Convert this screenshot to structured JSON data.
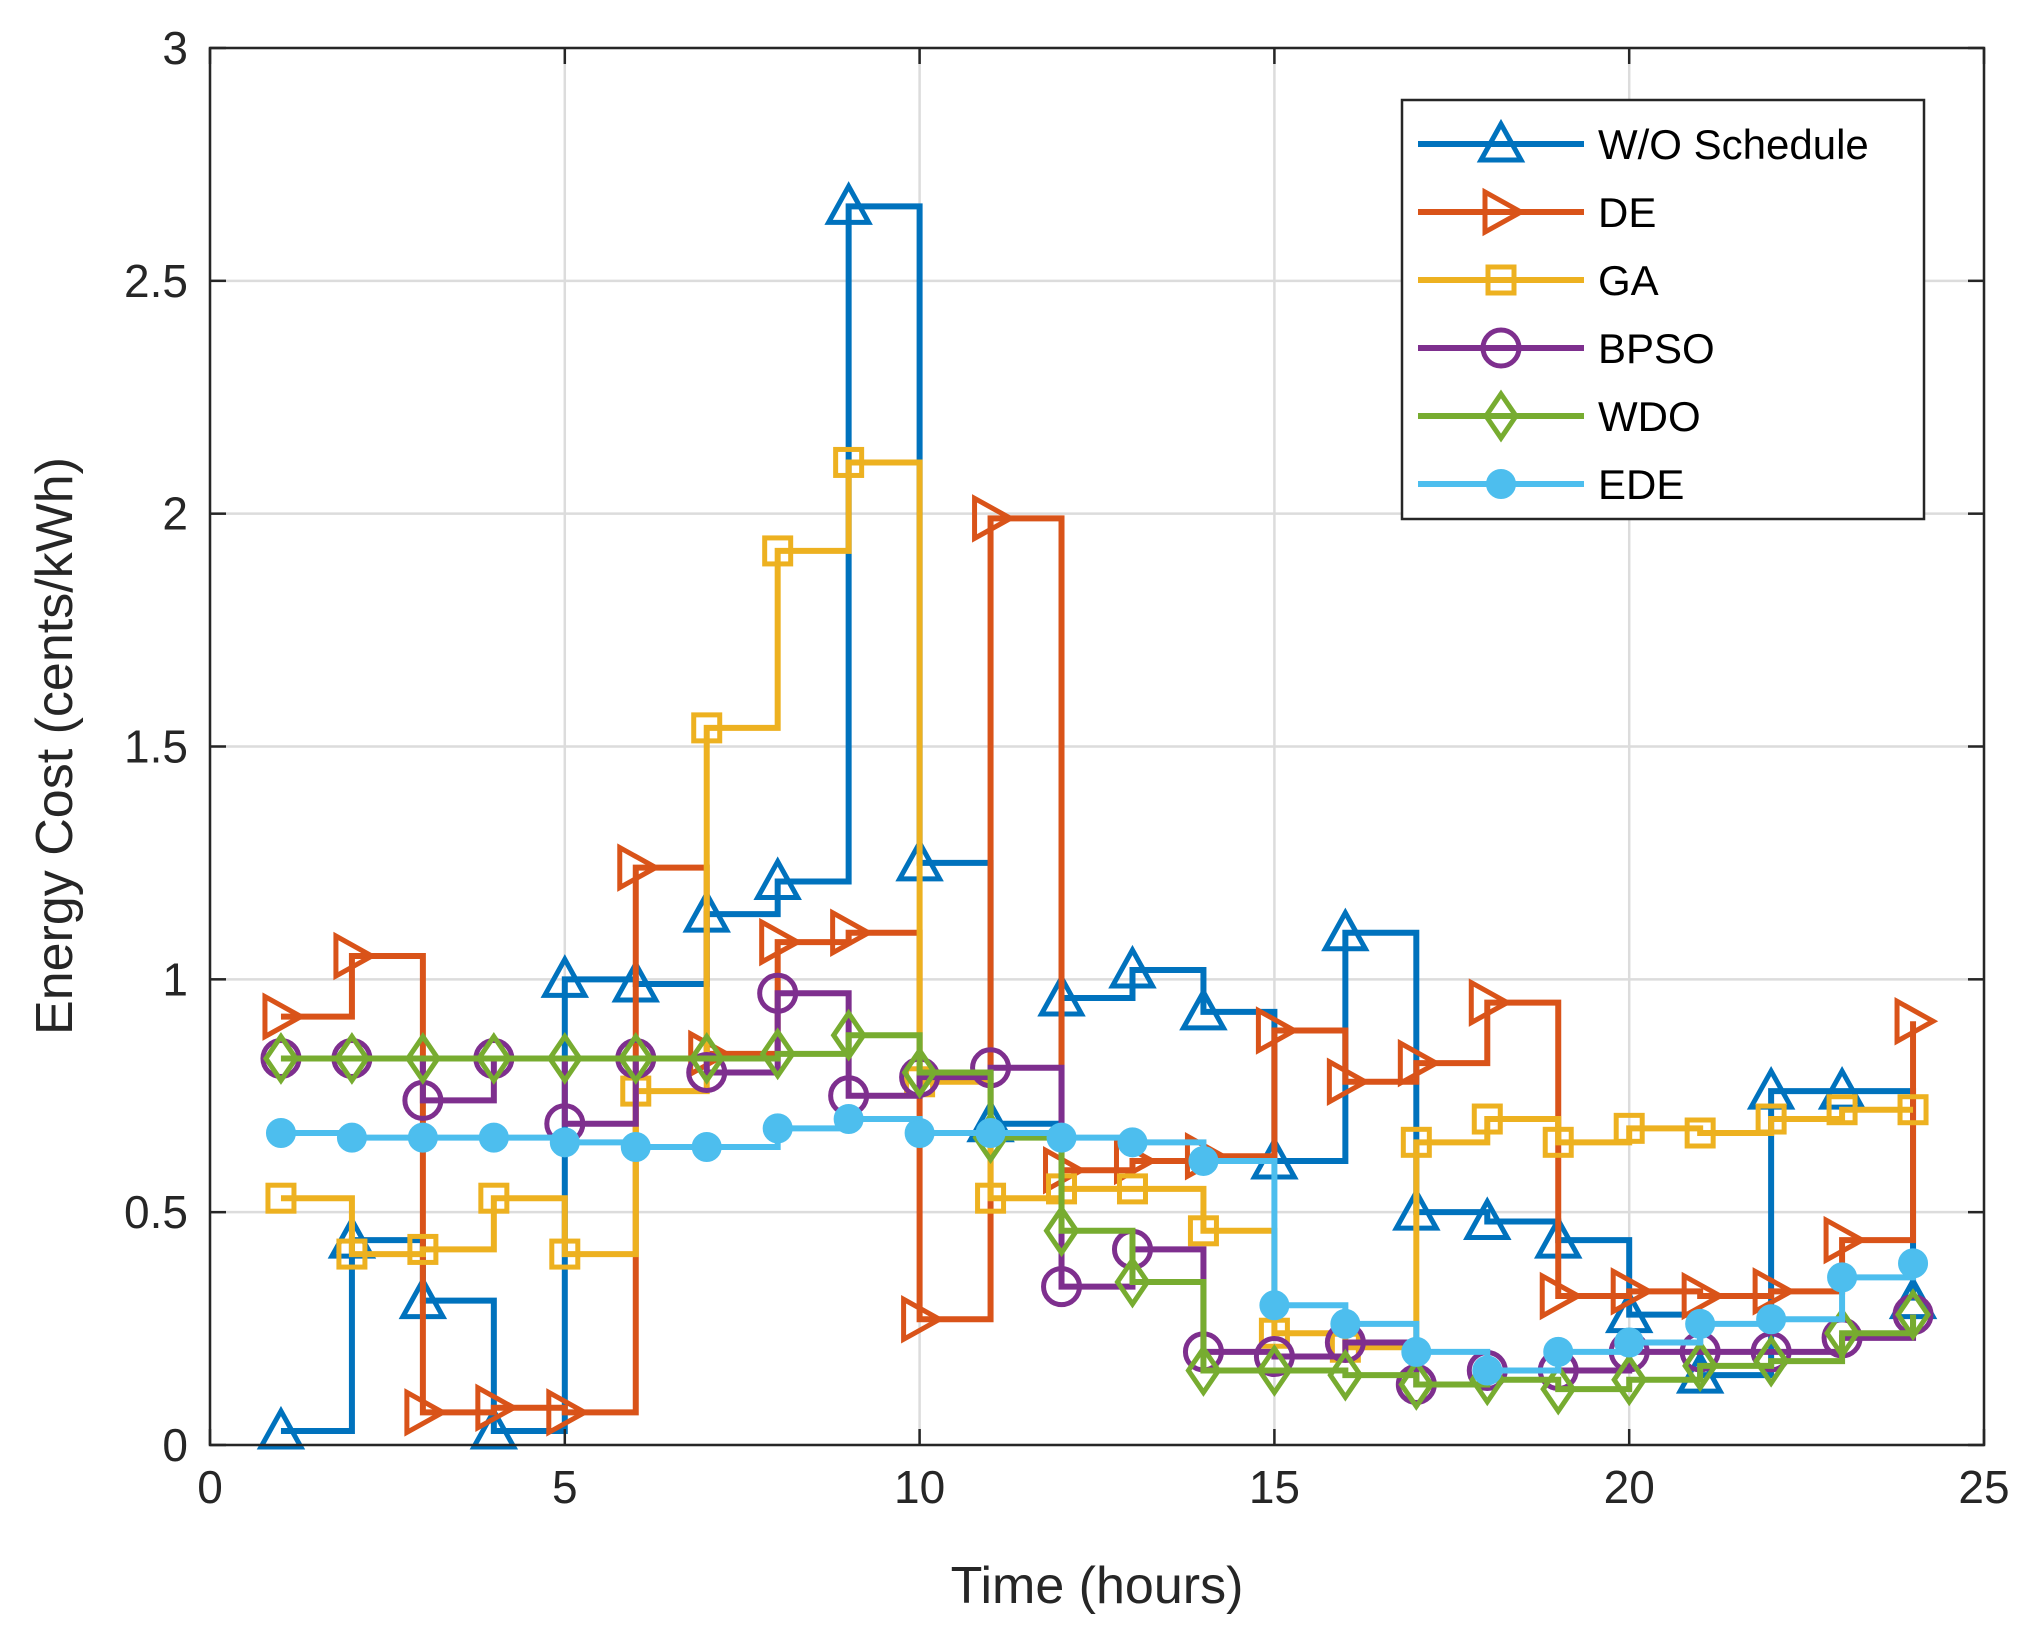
{
  "chart_data": {
    "type": "line",
    "style": "stairs",
    "title": "",
    "xlabel": "Time (hours)",
    "ylabel": "Energy Cost (cents/kWh)",
    "xlim": [
      0,
      25
    ],
    "ylim": [
      0,
      3
    ],
    "x_ticks": [
      "0",
      "5",
      "10",
      "15",
      "20",
      "25"
    ],
    "y_ticks": [
      "0",
      "0.5",
      "1",
      "1.5",
      "2",
      "2.5",
      "3"
    ],
    "grid": true,
    "legend_position": "top-right",
    "x": [
      1,
      2,
      3,
      4,
      5,
      6,
      7,
      8,
      9,
      10,
      11,
      12,
      13,
      14,
      15,
      16,
      17,
      18,
      19,
      20,
      21,
      22,
      23,
      24
    ],
    "series": [
      {
        "name": "W/O Schedule",
        "color": "#0072BD",
        "marker": "triangle-up",
        "values": [
          0.03,
          0.44,
          0.31,
          0.03,
          1.0,
          0.99,
          1.14,
          1.21,
          2.66,
          1.25,
          0.69,
          0.96,
          1.02,
          0.93,
          0.61,
          1.1,
          0.5,
          0.48,
          0.44,
          0.28,
          0.15,
          0.76,
          0.76,
          0.31
        ]
      },
      {
        "name": "DE",
        "color": "#D95319",
        "marker": "triangle-right",
        "values": [
          0.92,
          1.05,
          0.07,
          0.08,
          0.07,
          1.24,
          0.84,
          1.08,
          1.1,
          0.27,
          1.99,
          0.59,
          0.61,
          0.62,
          0.89,
          0.78,
          0.82,
          0.95,
          0.32,
          0.33,
          0.32,
          0.33,
          0.44,
          0.91
        ]
      },
      {
        "name": "GA",
        "color": "#EDB120",
        "marker": "square",
        "values": [
          0.53,
          0.41,
          0.42,
          0.53,
          0.41,
          0.76,
          1.54,
          1.92,
          2.11,
          0.78,
          0.53,
          0.55,
          0.55,
          0.46,
          0.24,
          0.21,
          0.65,
          0.7,
          0.65,
          0.68,
          0.67,
          0.7,
          0.72,
          0.72
        ]
      },
      {
        "name": "BPSO",
        "color": "#7E2F8E",
        "marker": "circle",
        "values": [
          0.83,
          0.83,
          0.74,
          0.83,
          0.69,
          0.83,
          0.8,
          0.97,
          0.75,
          0.79,
          0.81,
          0.34,
          0.42,
          0.2,
          0.19,
          0.22,
          0.13,
          0.16,
          0.16,
          0.2,
          0.2,
          0.2,
          0.23,
          0.28
        ]
      },
      {
        "name": "WDO",
        "color": "#77AC30",
        "marker": "diamond",
        "values": [
          0.83,
          0.83,
          0.83,
          0.83,
          0.83,
          0.83,
          0.83,
          0.84,
          0.88,
          0.8,
          0.66,
          0.46,
          0.35,
          0.16,
          0.16,
          0.15,
          0.13,
          0.14,
          0.12,
          0.14,
          0.17,
          0.18,
          0.24,
          0.28
        ]
      },
      {
        "name": "EDE",
        "color": "#4DBEEE",
        "marker": "dot",
        "values": [
          0.67,
          0.66,
          0.66,
          0.66,
          0.65,
          0.64,
          0.64,
          0.68,
          0.7,
          0.67,
          0.67,
          0.66,
          0.65,
          0.61,
          0.3,
          0.26,
          0.2,
          0.16,
          0.2,
          0.22,
          0.26,
          0.27,
          0.36,
          0.39
        ]
      }
    ]
  }
}
